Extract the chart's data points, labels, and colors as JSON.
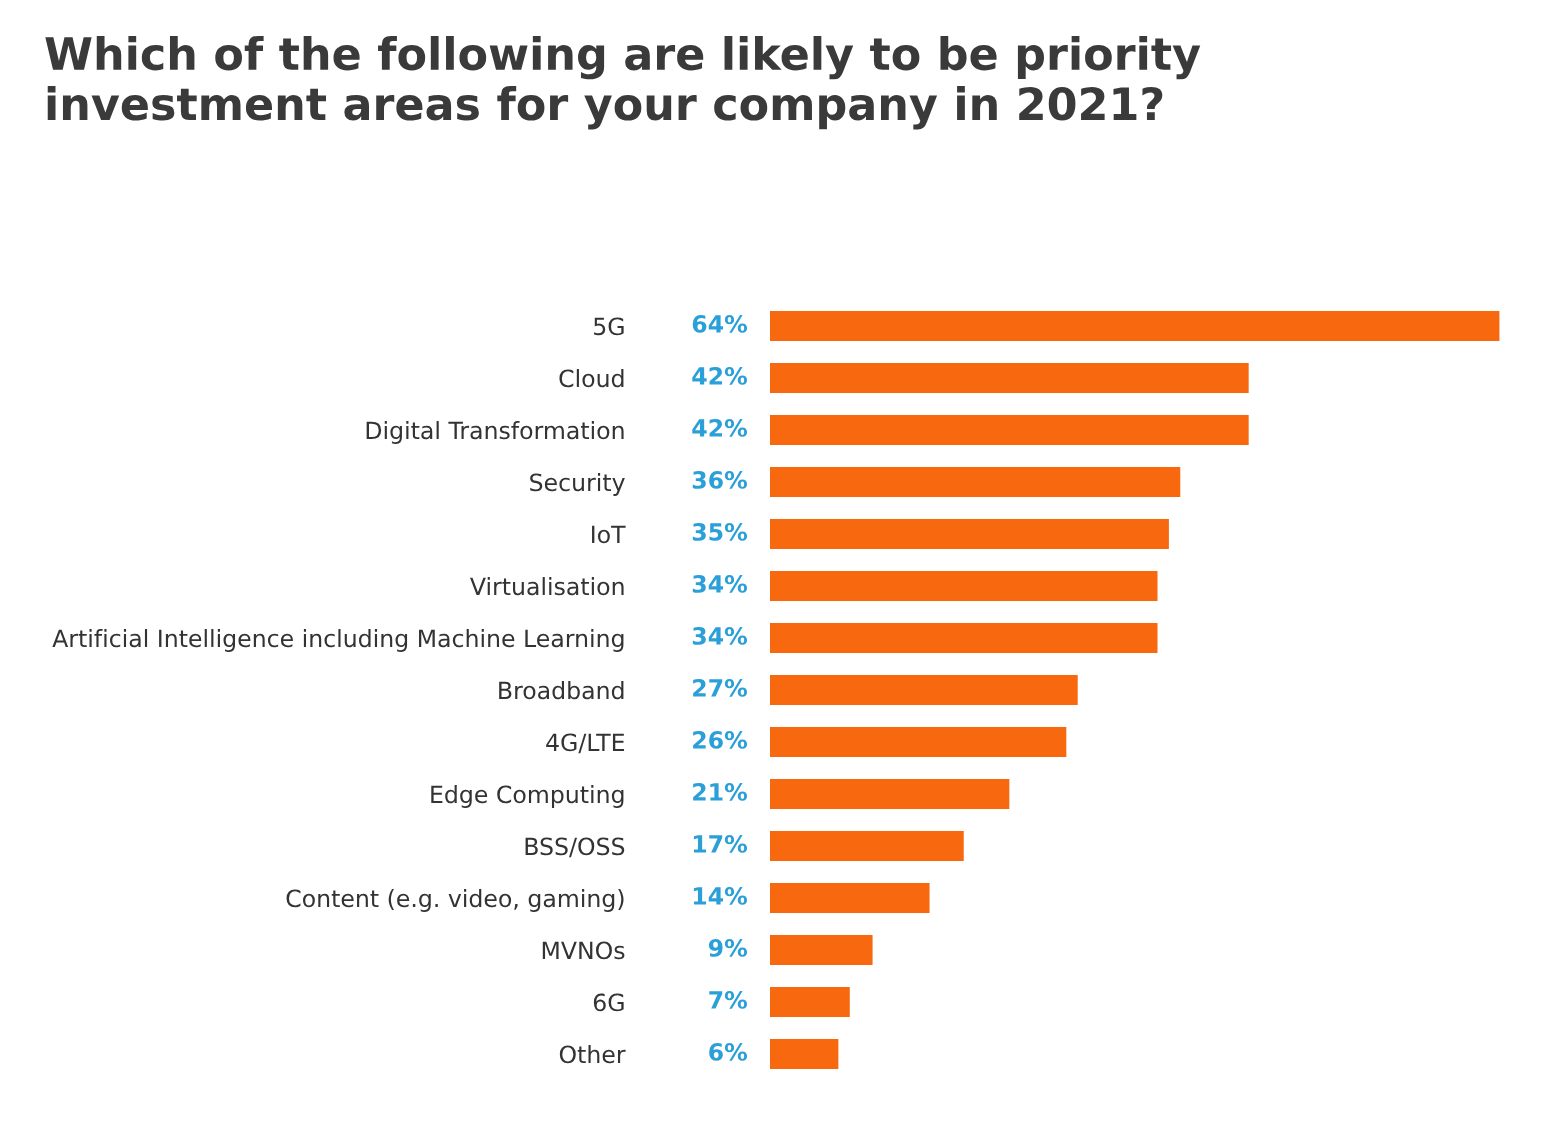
{
  "chart_data": {
    "type": "bar",
    "orientation": "horizontal",
    "title": "Which of the following are likely to be priority\ninvestment areas for your company in 2021?",
    "categories": [
      "5G",
      "Cloud",
      "Digital Transformation",
      "Security",
      "IoT",
      "Virtualisation",
      "Artificial Intelligence including Machine Learning",
      "Broadband",
      "4G/LTE",
      "Edge Computing",
      "BSS/OSS",
      "Content (e.g. video, gaming)",
      "MVNOs",
      "6G",
      "Other"
    ],
    "values": [
      64,
      42,
      42,
      36,
      35,
      34,
      34,
      27,
      26,
      21,
      17,
      14,
      9,
      7,
      6
    ],
    "value_labels": [
      "64%",
      "42%",
      "42%",
      "36%",
      "35%",
      "34%",
      "34%",
      "27%",
      "26%",
      "21%",
      "17%",
      "14%",
      "9%",
      "7%",
      "6%"
    ],
    "color": "#f7680f",
    "grid": false,
    "legend": false
  }
}
